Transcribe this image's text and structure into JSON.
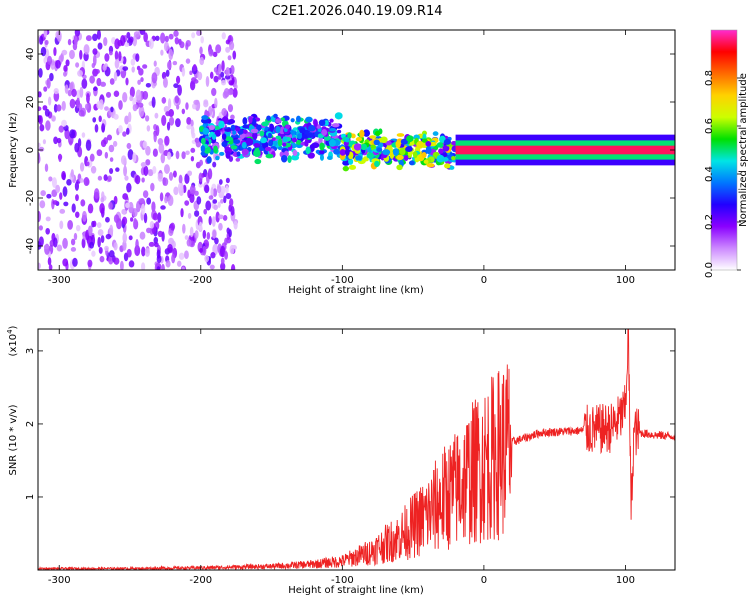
{
  "title": "C2E1.2026.040.19.09.R14",
  "chart_data": [
    {
      "type": "heatmap",
      "xlabel": "Height of straight line (km)",
      "ylabel": "Frequency (Hz)",
      "xlim": [
        -315,
        135
      ],
      "ylim": [
        -50,
        50
      ],
      "xticks": [
        -300,
        -200,
        -100,
        0,
        100
      ],
      "yticks": [
        -40,
        -20,
        0,
        20,
        40
      ],
      "colorbar": {
        "label": "Normalized spectral amplitude",
        "range": [
          0,
          1
        ],
        "ticks": [
          "0.0",
          "0.2",
          "0.4",
          "0.6",
          "0.8"
        ],
        "colors": [
          "#ffffff",
          "#cc88ff",
          "#8a00ff",
          "#2200ff",
          "#0077ff",
          "#00e5e5",
          "#00e000",
          "#ccff00",
          "#ffd200",
          "#ff6a00",
          "#ff0000",
          "#ff2bd0"
        ]
      },
      "regions": [
        {
          "x_range": [
            -315,
            -175
          ],
          "freq_halfwidth": 50,
          "amplitude": 0.12,
          "note": "diffuse noise"
        },
        {
          "x_range": [
            -200,
            -100
          ],
          "freq_center": 5,
          "freq_halfwidth": 10,
          "amplitude": 0.35
        },
        {
          "x_range": [
            -100,
            -20
          ],
          "freq_center": 0,
          "freq_halfwidth": 8,
          "amplitude": 0.5
        },
        {
          "x_range": [
            -20,
            135
          ],
          "freq_center": 0,
          "freq_halfwidth": 1,
          "amplitude": 0.95
        }
      ]
    },
    {
      "type": "line",
      "xlabel": "Height of straight line (km)",
      "ylabel": "SNR (10 * v/v)",
      "yscale_label": "(x10",
      "yscale_exp": "4",
      "yscale_close": ")",
      "xlim": [
        -315,
        135
      ],
      "ylim": [
        0,
        3.3
      ],
      "xticks": [
        -300,
        -200,
        -100,
        0,
        100
      ],
      "yticks": [
        1,
        2,
        3
      ],
      "color": "#ee2222",
      "series": [
        {
          "x": [
            -315,
            -250,
            -200,
            -150,
            -120,
            -100,
            -80,
            -60,
            -50,
            -40,
            -30,
            -20,
            -10,
            0,
            10,
            20,
            40,
            60,
            80,
            90,
            95,
            100,
            102,
            104,
            106,
            110,
            120,
            135
          ],
          "y": [
            0.02,
            0.02,
            0.03,
            0.05,
            0.08,
            0.12,
            0.25,
            0.45,
            0.6,
            0.75,
            0.95,
            1.1,
            1.3,
            1.45,
            1.6,
            1.75,
            1.88,
            1.9,
            1.92,
            1.95,
            2.05,
            2.2,
            3.3,
            0.8,
            1.9,
            1.88,
            1.85,
            1.83
          ]
        }
      ]
    }
  ]
}
